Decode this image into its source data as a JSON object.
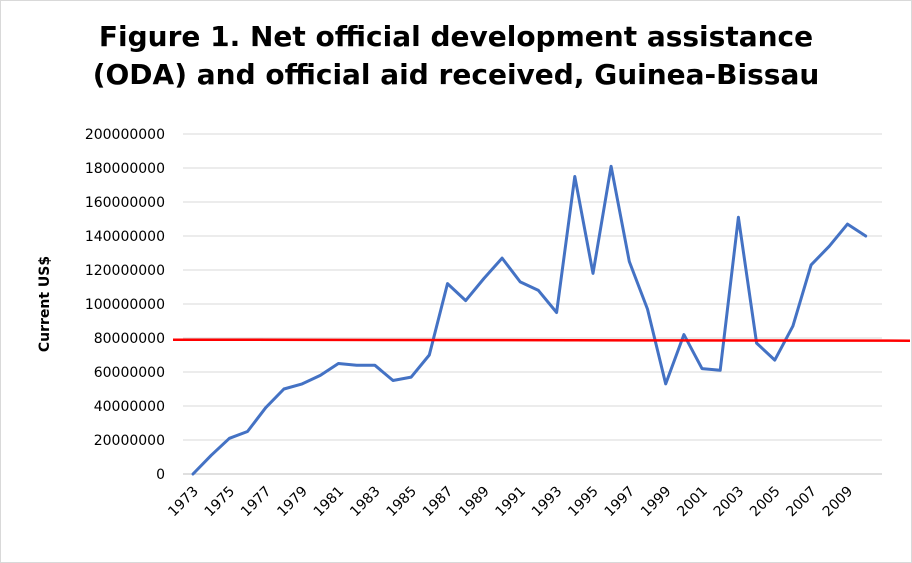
{
  "chart_data": {
    "type": "line",
    "title_line1": "Figure 1. Net official development assistance",
    "title_line2": "(ODA) and official aid received, Guinea-Bissau",
    "ylabel": "Current US$",
    "xlabel": "",
    "ylim": [
      0,
      200000000
    ],
    "y_ticks": [
      "0",
      "20000000",
      "40000000",
      "60000000",
      "80000000",
      "100000000",
      "120000000",
      "140000000",
      "160000000",
      "180000000",
      "200000000"
    ],
    "x_tick_labels": [
      "1973",
      "1975",
      "1977",
      "1979",
      "1981",
      "1983",
      "1985",
      "1987",
      "1989",
      "1991",
      "1993",
      "1995",
      "1997",
      "1999",
      "2001",
      "2003",
      "2005",
      "2007",
      "2009"
    ],
    "x": [
      1973,
      1974,
      1975,
      1976,
      1977,
      1978,
      1979,
      1980,
      1981,
      1982,
      1983,
      1984,
      1985,
      1986,
      1987,
      1988,
      1989,
      1990,
      1991,
      1992,
      1993,
      1994,
      1995,
      1996,
      1997,
      1998,
      1999,
      2000,
      2001,
      2002,
      2003,
      2004,
      2005,
      2006,
      2007,
      2008,
      2009,
      2010
    ],
    "series": [
      {
        "color": "#4472C4",
        "values": [
          0,
          11000000,
          21000000,
          25000000,
          39000000,
          50000000,
          53000000,
          58000000,
          65000000,
          64000000,
          64000000,
          55000000,
          57000000,
          70000000,
          112000000,
          102000000,
          115000000,
          127000000,
          113000000,
          108000000,
          95000000,
          175000000,
          118000000,
          181000000,
          125000000,
          97000000,
          53000000,
          82000000,
          62000000,
          61000000,
          151000000,
          77000000,
          67000000,
          87000000,
          123000000,
          134000000,
          147000000,
          140000000
        ]
      }
    ],
    "reference_line": {
      "value": 79000000,
      "color": "#FF0000"
    },
    "grid": true,
    "legend": "none"
  }
}
